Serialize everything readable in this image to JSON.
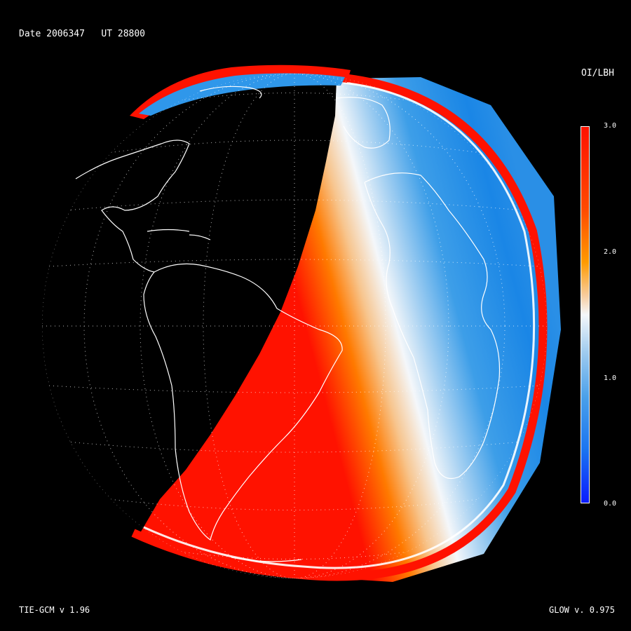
{
  "header": {
    "date_text": "Date 2006347   UT 28800"
  },
  "footer": {
    "model_left": "TIE-GCM v 1.96",
    "model_right": "GLOW v. 0.975"
  },
  "colorbar": {
    "title": "OI/LBH",
    "ticks": [
      "3.0",
      "2.0",
      "1.0",
      "0.0"
    ],
    "min": 0.0,
    "max": 3.0,
    "colors": {
      "low": "#0a2bff",
      "mid_low": "#1e88e5",
      "mid": "#f4f7fa",
      "mid_high": "#ff8c00",
      "high": "#ff1200"
    }
  },
  "globe": {
    "night_color": "#000000",
    "coastline_color": "#ffffff",
    "grid_color": "#ffffff"
  }
}
